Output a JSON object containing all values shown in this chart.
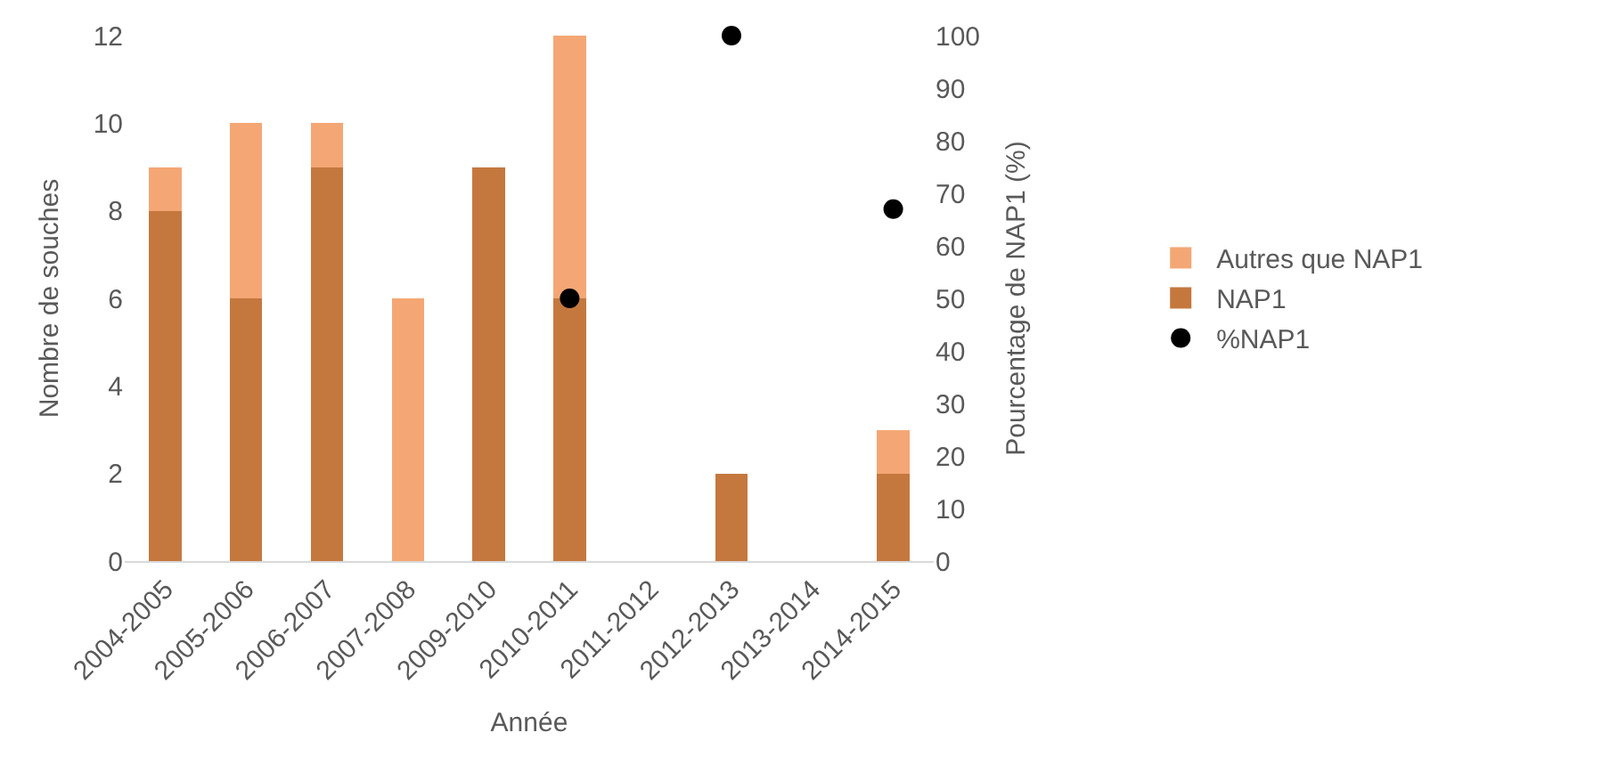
{
  "chart_data": {
    "type": "bar",
    "stacked": true,
    "xlabel": "Année",
    "ylabel": "Nombre de souches",
    "y2label": "Pourcentage de NAP1 (%)",
    "categories": [
      "2004-2005",
      "2005-2006",
      "2006-2007",
      "2007-2008",
      "2009-2010",
      "2010-2011",
      "2011-2012",
      "2012-2013",
      "2013-2014",
      "2014-2015"
    ],
    "series": [
      {
        "name": "NAP1",
        "color": "#c5783e",
        "values": [
          8,
          6,
          9,
          0,
          9,
          6,
          0,
          2,
          0,
          2
        ]
      },
      {
        "name": "Autres que NAP1",
        "color": "#f4a774",
        "values": [
          1,
          4,
          1,
          6,
          0,
          6,
          0,
          0,
          0,
          1
        ]
      },
      {
        "name": "%NAP1",
        "type": "scatter",
        "axis": "y2",
        "color": "#000000",
        "marker": "circle",
        "values": [
          null,
          null,
          null,
          null,
          null,
          50,
          null,
          100,
          null,
          67
        ]
      }
    ],
    "ylim": [
      0,
      12
    ],
    "yticks": [
      0,
      2,
      4,
      6,
      8,
      10,
      12
    ],
    "y2lim": [
      0,
      100
    ],
    "y2ticks": [
      0,
      10,
      20,
      30,
      40,
      50,
      60,
      70,
      80,
      90,
      100
    ],
    "legend": "right"
  }
}
